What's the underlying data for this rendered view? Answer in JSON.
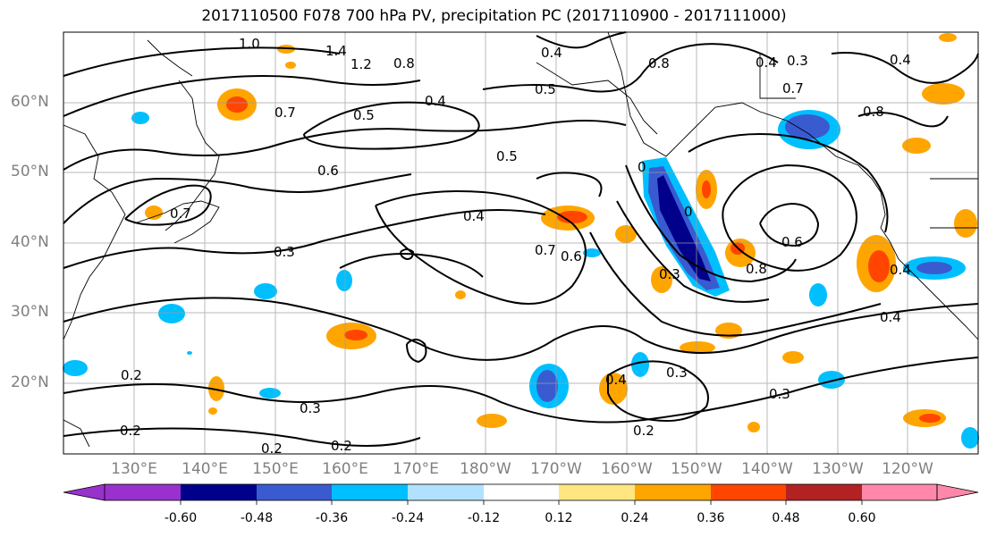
{
  "title": "2017110500 F078 700 hPa PV, precipitation PC (2017110900 - 2017111000)",
  "lat_labels": [
    "60°N",
    "50°N",
    "40°N",
    "30°N",
    "20°N"
  ],
  "lon_labels": [
    "130°E",
    "140°E",
    "150°E",
    "160°E",
    "170°E",
    "180°W",
    "170°W",
    "160°W",
    "150°W",
    "140°W",
    "130°W",
    "120°W"
  ],
  "contour_labels": [
    "1.0",
    "1.4",
    "1.2",
    "0.8",
    "0.4",
    "0.4",
    "0.8",
    "0.4",
    "0.3",
    "0.7",
    "0.5",
    "0.4",
    "0.7",
    "0.5",
    "0.5",
    "0.8",
    "0.6",
    "0.7",
    "0.4",
    "0.3",
    "0.7",
    "0.6",
    "0",
    "0",
    "0.6",
    "0.8",
    "0.4",
    "0.3",
    "0.4",
    "0.2",
    "0.3",
    "0.2",
    "0.2",
    "0.2",
    "0.4",
    "0.3",
    "0.2",
    "0.3"
  ],
  "colorbar": {
    "labels": [
      "-0.60",
      "-0.48",
      "-0.36",
      "-0.24",
      "-0.12",
      "0.12",
      "0.24",
      "0.36",
      "0.48",
      "0.60"
    ],
    "colors": [
      "#9932cc",
      "#00008b",
      "#3a5bd0",
      "#00bfff",
      "#b0e2ff",
      "#ffffff",
      "#ffe680",
      "#ffa500",
      "#ff4500",
      "#b22222",
      "#ff88aa"
    ]
  }
}
